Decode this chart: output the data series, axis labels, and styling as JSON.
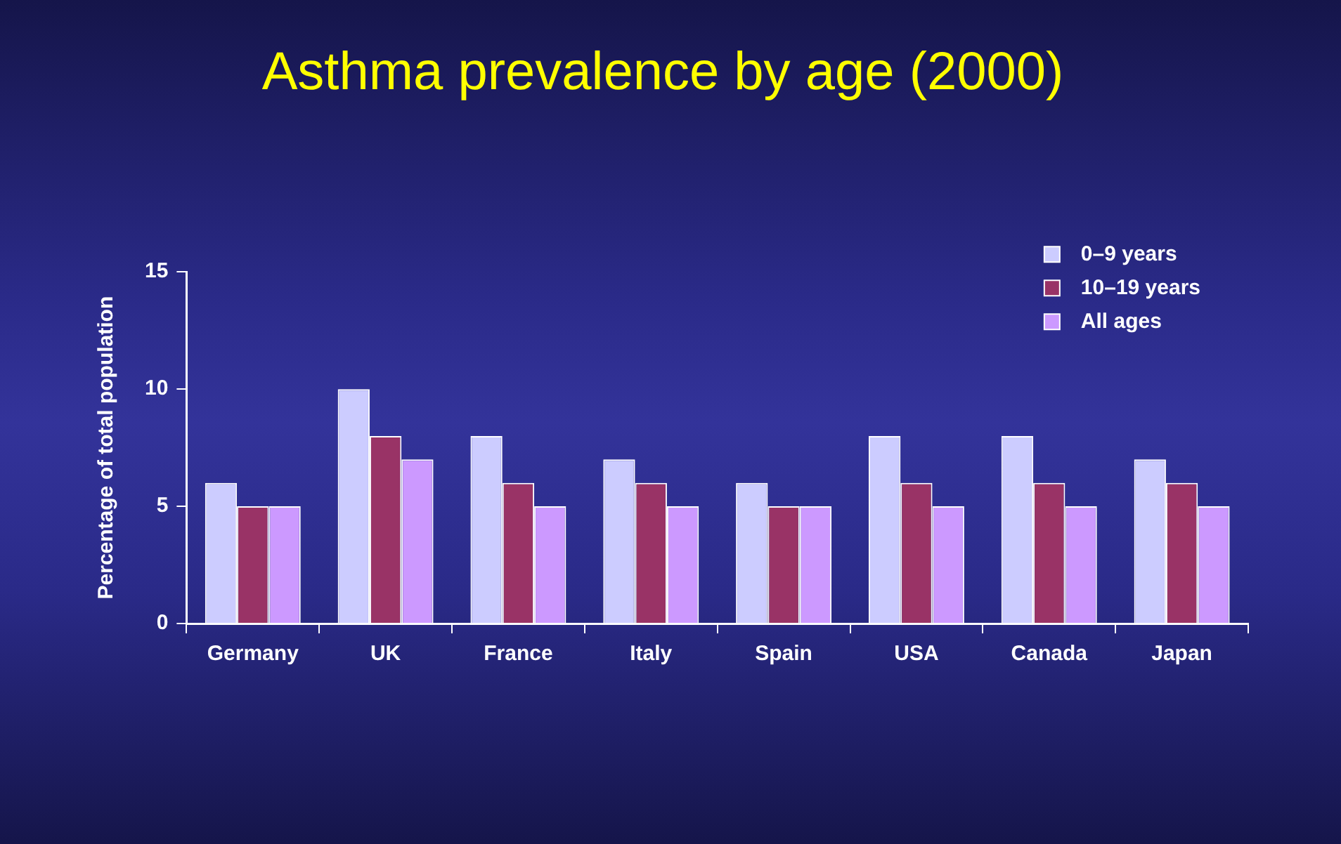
{
  "chart_data": {
    "type": "bar",
    "title": "Asthma prevalence by age (2000)",
    "ylabel": "Percentage of total population",
    "categories": [
      "Germany",
      "UK",
      "France",
      "Italy",
      "Spain",
      "USA",
      "Canada",
      "Japan"
    ],
    "series": [
      {
        "name": "0–9 years",
        "color": "#ccccff",
        "values": [
          6,
          10,
          8,
          7,
          6,
          8,
          8,
          7
        ]
      },
      {
        "name": "10–19 years",
        "color": "#993366",
        "values": [
          5,
          8,
          6,
          6,
          5,
          6,
          6,
          6
        ]
      },
      {
        "name": "All ages",
        "color": "#cc99ff",
        "values": [
          5,
          7,
          5,
          5,
          5,
          5,
          5,
          5
        ]
      }
    ],
    "ylim": [
      0,
      15
    ],
    "yticks": [
      0,
      5,
      10,
      15
    ],
    "grid": false,
    "legend": "top right"
  }
}
